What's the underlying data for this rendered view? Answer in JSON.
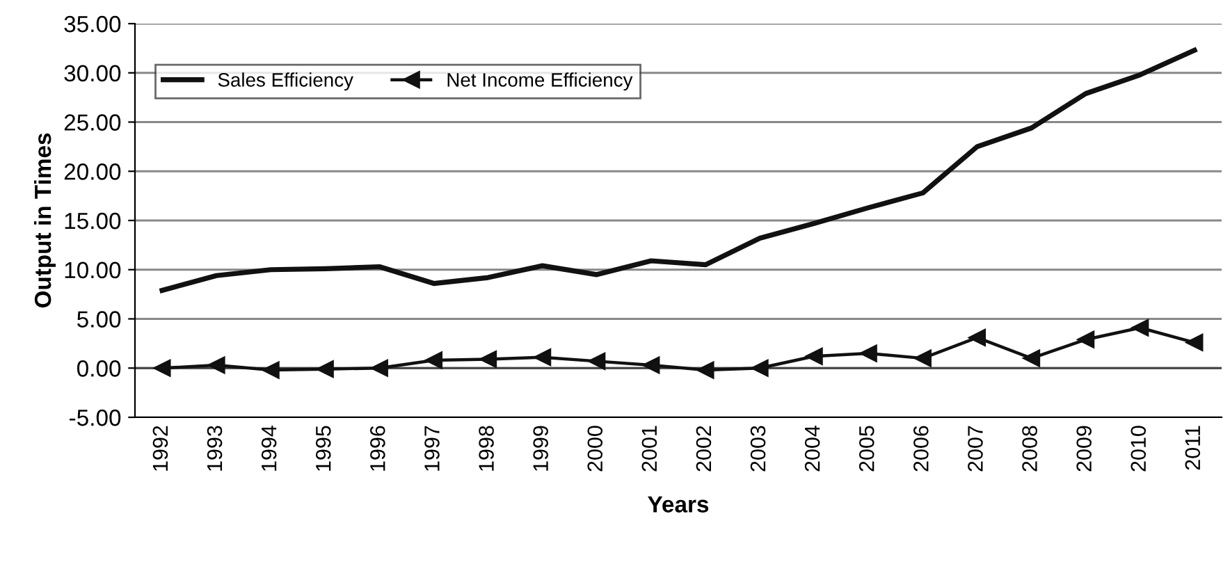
{
  "chart_data": {
    "type": "line",
    "xlabel": "Years",
    "ylabel": "Output in Times",
    "categories": [
      "1992",
      "1993",
      "1994",
      "1995",
      "1996",
      "1997",
      "1998",
      "1999",
      "2000",
      "2001",
      "2002",
      "2003",
      "2004",
      "2005",
      "2006",
      "2007",
      "2008",
      "2009",
      "2010",
      "2011"
    ],
    "series": [
      {
        "name": "Sales Efficiency",
        "color": "#111111",
        "marker": "none",
        "values": [
          7.9,
          9.4,
          10.0,
          10.1,
          10.3,
          8.6,
          9.2,
          10.4,
          9.5,
          10.9,
          10.5,
          13.2,
          14.7,
          16.3,
          17.8,
          22.5,
          24.4,
          27.9,
          29.8,
          32.3
        ]
      },
      {
        "name": "Net Income Efficiency",
        "color": "#111111",
        "marker": "triangle",
        "values": [
          0.0,
          0.3,
          -0.2,
          -0.1,
          0.0,
          0.8,
          0.9,
          1.1,
          0.7,
          0.3,
          -0.2,
          0.0,
          1.2,
          1.5,
          1.0,
          3.1,
          1.0,
          2.9,
          4.1,
          2.6
        ]
      }
    ],
    "ylim": [
      -5,
      35
    ],
    "yticks": [
      {
        "value": -5,
        "label": "-5.00"
      },
      {
        "value": 0,
        "label": "0.00"
      },
      {
        "value": 5,
        "label": "5.00"
      },
      {
        "value": 10,
        "label": "10.00"
      },
      {
        "value": 15,
        "label": "15.00"
      },
      {
        "value": 20,
        "label": "20.00"
      },
      {
        "value": 25,
        "label": "25.00"
      },
      {
        "value": 30,
        "label": "30.00"
      },
      {
        "value": 35,
        "label": "35.00"
      }
    ],
    "grid": "y",
    "legend": "top left"
  }
}
